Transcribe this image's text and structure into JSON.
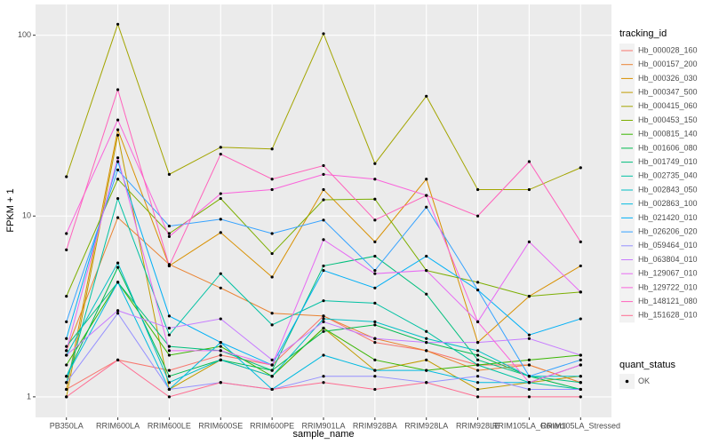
{
  "chart_data": {
    "type": "line",
    "x_label": "sample_name",
    "y_label": "FPKM + 1",
    "log_y": true,
    "grid": true,
    "point_color": "#000000",
    "legend_title": "tracking_id",
    "shape_legend": {
      "title": "quant_status",
      "label": "OK"
    },
    "categories": [
      "PB350LA",
      "RRIM600LA",
      "RRIM600LE",
      "RRIM600SE",
      "RRIM600PE",
      "RRIM901LA",
      "RRIM928BA",
      "RRIM928LA",
      "RRIM928LE",
      "RRIM105LA_Control",
      "RRIM105LA_Stressed"
    ],
    "ylim": [
      0.77,
      148
    ],
    "yticks": [
      1,
      10,
      100
    ],
    "series": [
      {
        "name": "Hb_000028_160",
        "color": "#F8766D",
        "values": [
          1.1,
          1.6,
          1.4,
          1.7,
          1.5,
          2.8,
          2.0,
          1.8,
          1.5,
          1.5,
          1.2
        ]
      },
      {
        "name": "Hb_000157_200",
        "color": "#EA8331",
        "values": [
          1.8,
          9.8,
          5.4,
          4.0,
          2.9,
          2.8,
          2.1,
          1.8,
          1.4,
          1.5,
          1.2
        ]
      },
      {
        "name": "Hb_000326_030",
        "color": "#D89000",
        "values": [
          1.1,
          30,
          5.3,
          8.1,
          4.6,
          14,
          7.2,
          16,
          2.0,
          3.6,
          5.3
        ]
      },
      {
        "name": "Hb_000347_500",
        "color": "#C09B00",
        "values": [
          1.0,
          28,
          1.1,
          1.6,
          1.3,
          2.4,
          1.4,
          1.6,
          1.1,
          1.2,
          1.3
        ]
      },
      {
        "name": "Hb_000415_060",
        "color": "#A3A500",
        "values": [
          16.5,
          115,
          17,
          24,
          23.5,
          102,
          19.5,
          46,
          14,
          14,
          18.5
        ]
      },
      {
        "name": "Hb_000453_150",
        "color": "#7CAE00",
        "values": [
          3.6,
          16,
          8.0,
          12.5,
          6.2,
          12.3,
          12.4,
          5.0,
          4.3,
          3.6,
          3.8
        ]
      },
      {
        "name": "Hb_000815_140",
        "color": "#39B600",
        "values": [
          1.5,
          4.3,
          1.7,
          1.9,
          1.3,
          2.4,
          1.6,
          1.4,
          1.5,
          1.6,
          1.7
        ]
      },
      {
        "name": "Hb_001606_080",
        "color": "#00BB4E",
        "values": [
          1.3,
          5.2,
          1.3,
          1.6,
          1.4,
          2.3,
          2.5,
          2.0,
          1.7,
          1.3,
          1.1
        ]
      },
      {
        "name": "Hb_001749_010",
        "color": "#00BF7D",
        "values": [
          1.9,
          4.3,
          1.9,
          1.8,
          1.4,
          5.3,
          6.0,
          3.7,
          1.6,
          1.3,
          1.2
        ]
      },
      {
        "name": "Hb_002735_040",
        "color": "#00C1A3",
        "values": [
          1.2,
          12.5,
          2.2,
          4.8,
          2.5,
          3.4,
          3.3,
          2.3,
          1.5,
          1.2,
          1.1
        ]
      },
      {
        "name": "Hb_002843_050",
        "color": "#00BFC4",
        "values": [
          1.7,
          5.5,
          1.2,
          1.6,
          1.3,
          2.7,
          2.6,
          2.1,
          1.8,
          1.3,
          1.3
        ]
      },
      {
        "name": "Hb_002863_100",
        "color": "#00BAE0",
        "values": [
          1.3,
          4.3,
          1.1,
          2.0,
          1.1,
          1.7,
          1.4,
          1.4,
          1.2,
          1.2,
          1.5
        ]
      },
      {
        "name": "Hb_021420_010",
        "color": "#00B0F6",
        "values": [
          2.1,
          20,
          2.8,
          2.0,
          1.5,
          5.0,
          4.0,
          6.0,
          3.9,
          2.2,
          2.7
        ]
      },
      {
        "name": "Hb_026206_020",
        "color": "#35A2FF",
        "values": [
          2.6,
          18,
          8.8,
          9.6,
          8.0,
          9.5,
          5.0,
          11.2,
          3.9,
          1.3,
          1.6
        ]
      },
      {
        "name": "Hb_059464_010",
        "color": "#9590FF",
        "values": [
          1.2,
          2.9,
          1.1,
          1.2,
          1.1,
          1.3,
          1.3,
          1.2,
          1.3,
          1.1,
          1.1
        ]
      },
      {
        "name": "Hb_063804_010",
        "color": "#C77CFF",
        "values": [
          1.7,
          3.0,
          2.4,
          2.7,
          1.6,
          2.6,
          2.1,
          2.0,
          2.0,
          2.1,
          1.7
        ]
      },
      {
        "name": "Hb_129067_010",
        "color": "#E76BF3",
        "values": [
          1.8,
          21,
          1.8,
          1.8,
          1.5,
          7.4,
          4.8,
          5.0,
          2.6,
          7.2,
          3.8
        ]
      },
      {
        "name": "Hb_129722_010",
        "color": "#FA62DB",
        "values": [
          8.0,
          34,
          7.7,
          13.3,
          14,
          17,
          16,
          13,
          2.6,
          1.2,
          1.5
        ]
      },
      {
        "name": "Hb_148121_080",
        "color": "#FF62BC",
        "values": [
          6.5,
          50,
          5.3,
          22,
          16,
          19,
          9.5,
          13,
          10,
          20,
          7.2
        ]
      },
      {
        "name": "Hb_151628_010",
        "color": "#FF6C91",
        "values": [
          1.0,
          1.6,
          1.0,
          1.2,
          1.1,
          1.2,
          1.1,
          1.2,
          1.0,
          1.0,
          1.0
        ]
      }
    ]
  }
}
